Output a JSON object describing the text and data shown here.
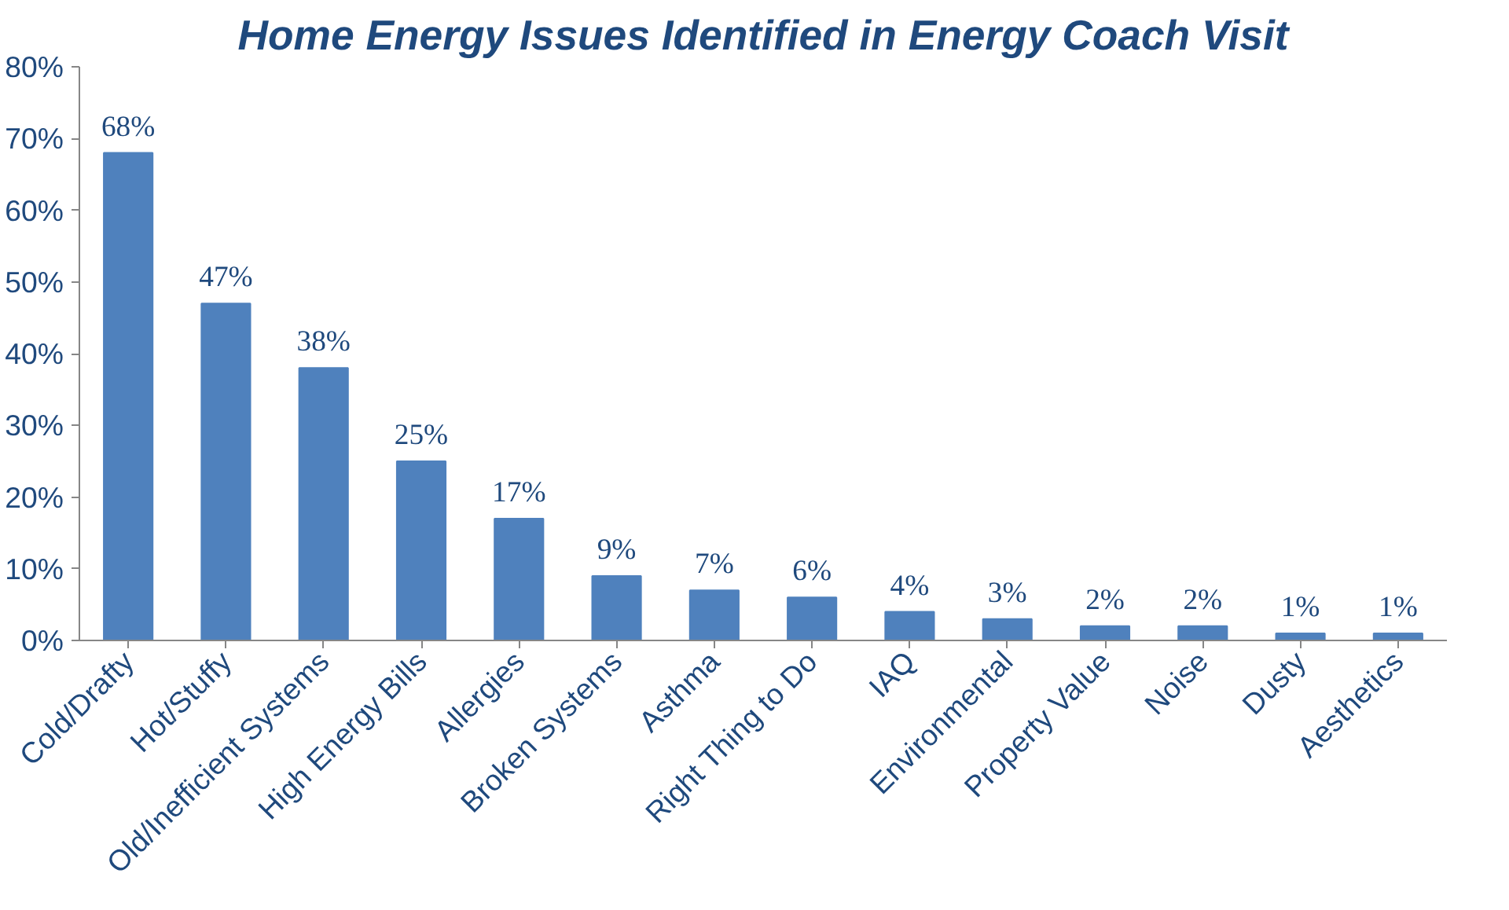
{
  "chart_data": {
    "type": "bar",
    "title": "Home Energy Issues Identified in Energy Coach Visit",
    "categories": [
      "Cold/Drafty",
      "Hot/Stuffy",
      "Old/Inefficient Systems",
      "High Energy Bills",
      "Allergies",
      "Broken Systems",
      "Asthma",
      "Right Thing to Do",
      "IAQ",
      "Environmental",
      "Property Value",
      "Noise",
      "Dusty",
      "Aesthetics"
    ],
    "values": [
      68,
      47,
      38,
      25,
      17,
      9,
      7,
      6,
      4,
      3,
      2,
      2,
      1,
      1
    ],
    "value_labels": [
      "68%",
      "47%",
      "38%",
      "25%",
      "17%",
      "9%",
      "7%",
      "6%",
      "4%",
      "3%",
      "2%",
      "2%",
      "1%",
      "1%"
    ],
    "color": "#4f81bd",
    "ylim": [
      0,
      80
    ],
    "yticks": [
      {
        "value": 0,
        "label": "0%"
      },
      {
        "value": 10,
        "label": "10%"
      },
      {
        "value": 20,
        "label": "20%"
      },
      {
        "value": 30,
        "label": "30%"
      },
      {
        "value": 40,
        "label": "40%"
      },
      {
        "value": 50,
        "label": "50%"
      },
      {
        "value": 60,
        "label": "60%"
      },
      {
        "value": 70,
        "label": "70%"
      },
      {
        "value": 80,
        "label": "80%"
      }
    ]
  }
}
